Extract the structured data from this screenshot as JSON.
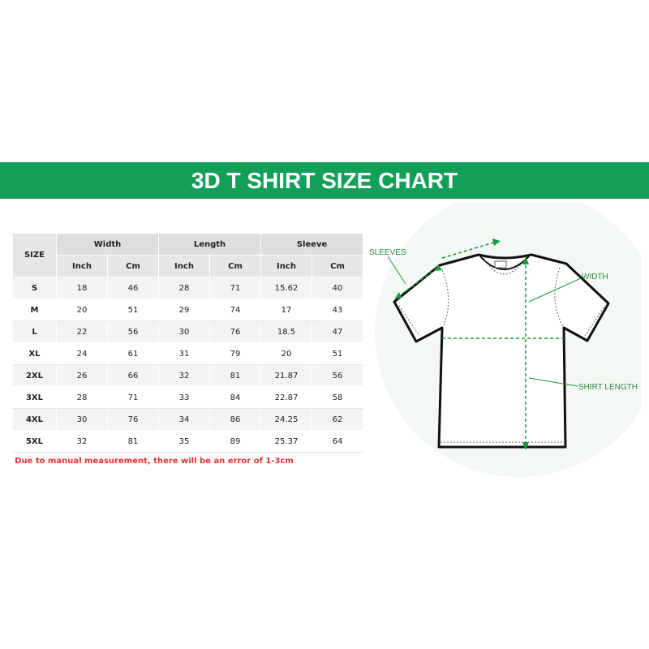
{
  "header": {
    "title": "3D T SHIRT SIZE CHART"
  },
  "table": {
    "size_header": "SIZE",
    "groups": [
      "Width",
      "Length",
      "Sleeve"
    ],
    "subheaders": [
      "Inch",
      "Cm",
      "Inch",
      "Cm",
      "Inch",
      "Cm"
    ],
    "rows": [
      [
        "S",
        "18",
        "46",
        "28",
        "71",
        "15.62",
        "40"
      ],
      [
        "M",
        "20",
        "51",
        "29",
        "74",
        "17",
        "43"
      ],
      [
        "L",
        "22",
        "56",
        "30",
        "76",
        "18.5",
        "47"
      ],
      [
        "XL",
        "24",
        "61",
        "31",
        "79",
        "20",
        "51"
      ],
      [
        "2XL",
        "26",
        "66",
        "32",
        "81",
        "21.87",
        "56"
      ],
      [
        "3XL",
        "28",
        "71",
        "33",
        "84",
        "22.87",
        "58"
      ],
      [
        "4XL",
        "30",
        "76",
        "34",
        "86",
        "24.25",
        "62"
      ],
      [
        "5XL",
        "32",
        "81",
        "35",
        "89",
        "25.37",
        "64"
      ]
    ],
    "note": "Due to manual measurement, there will be an error of 1-3cm"
  },
  "diagram": {
    "labels": [
      "SLEEVES",
      "WIDTH",
      "SHIRT LENGTH"
    ]
  }
}
